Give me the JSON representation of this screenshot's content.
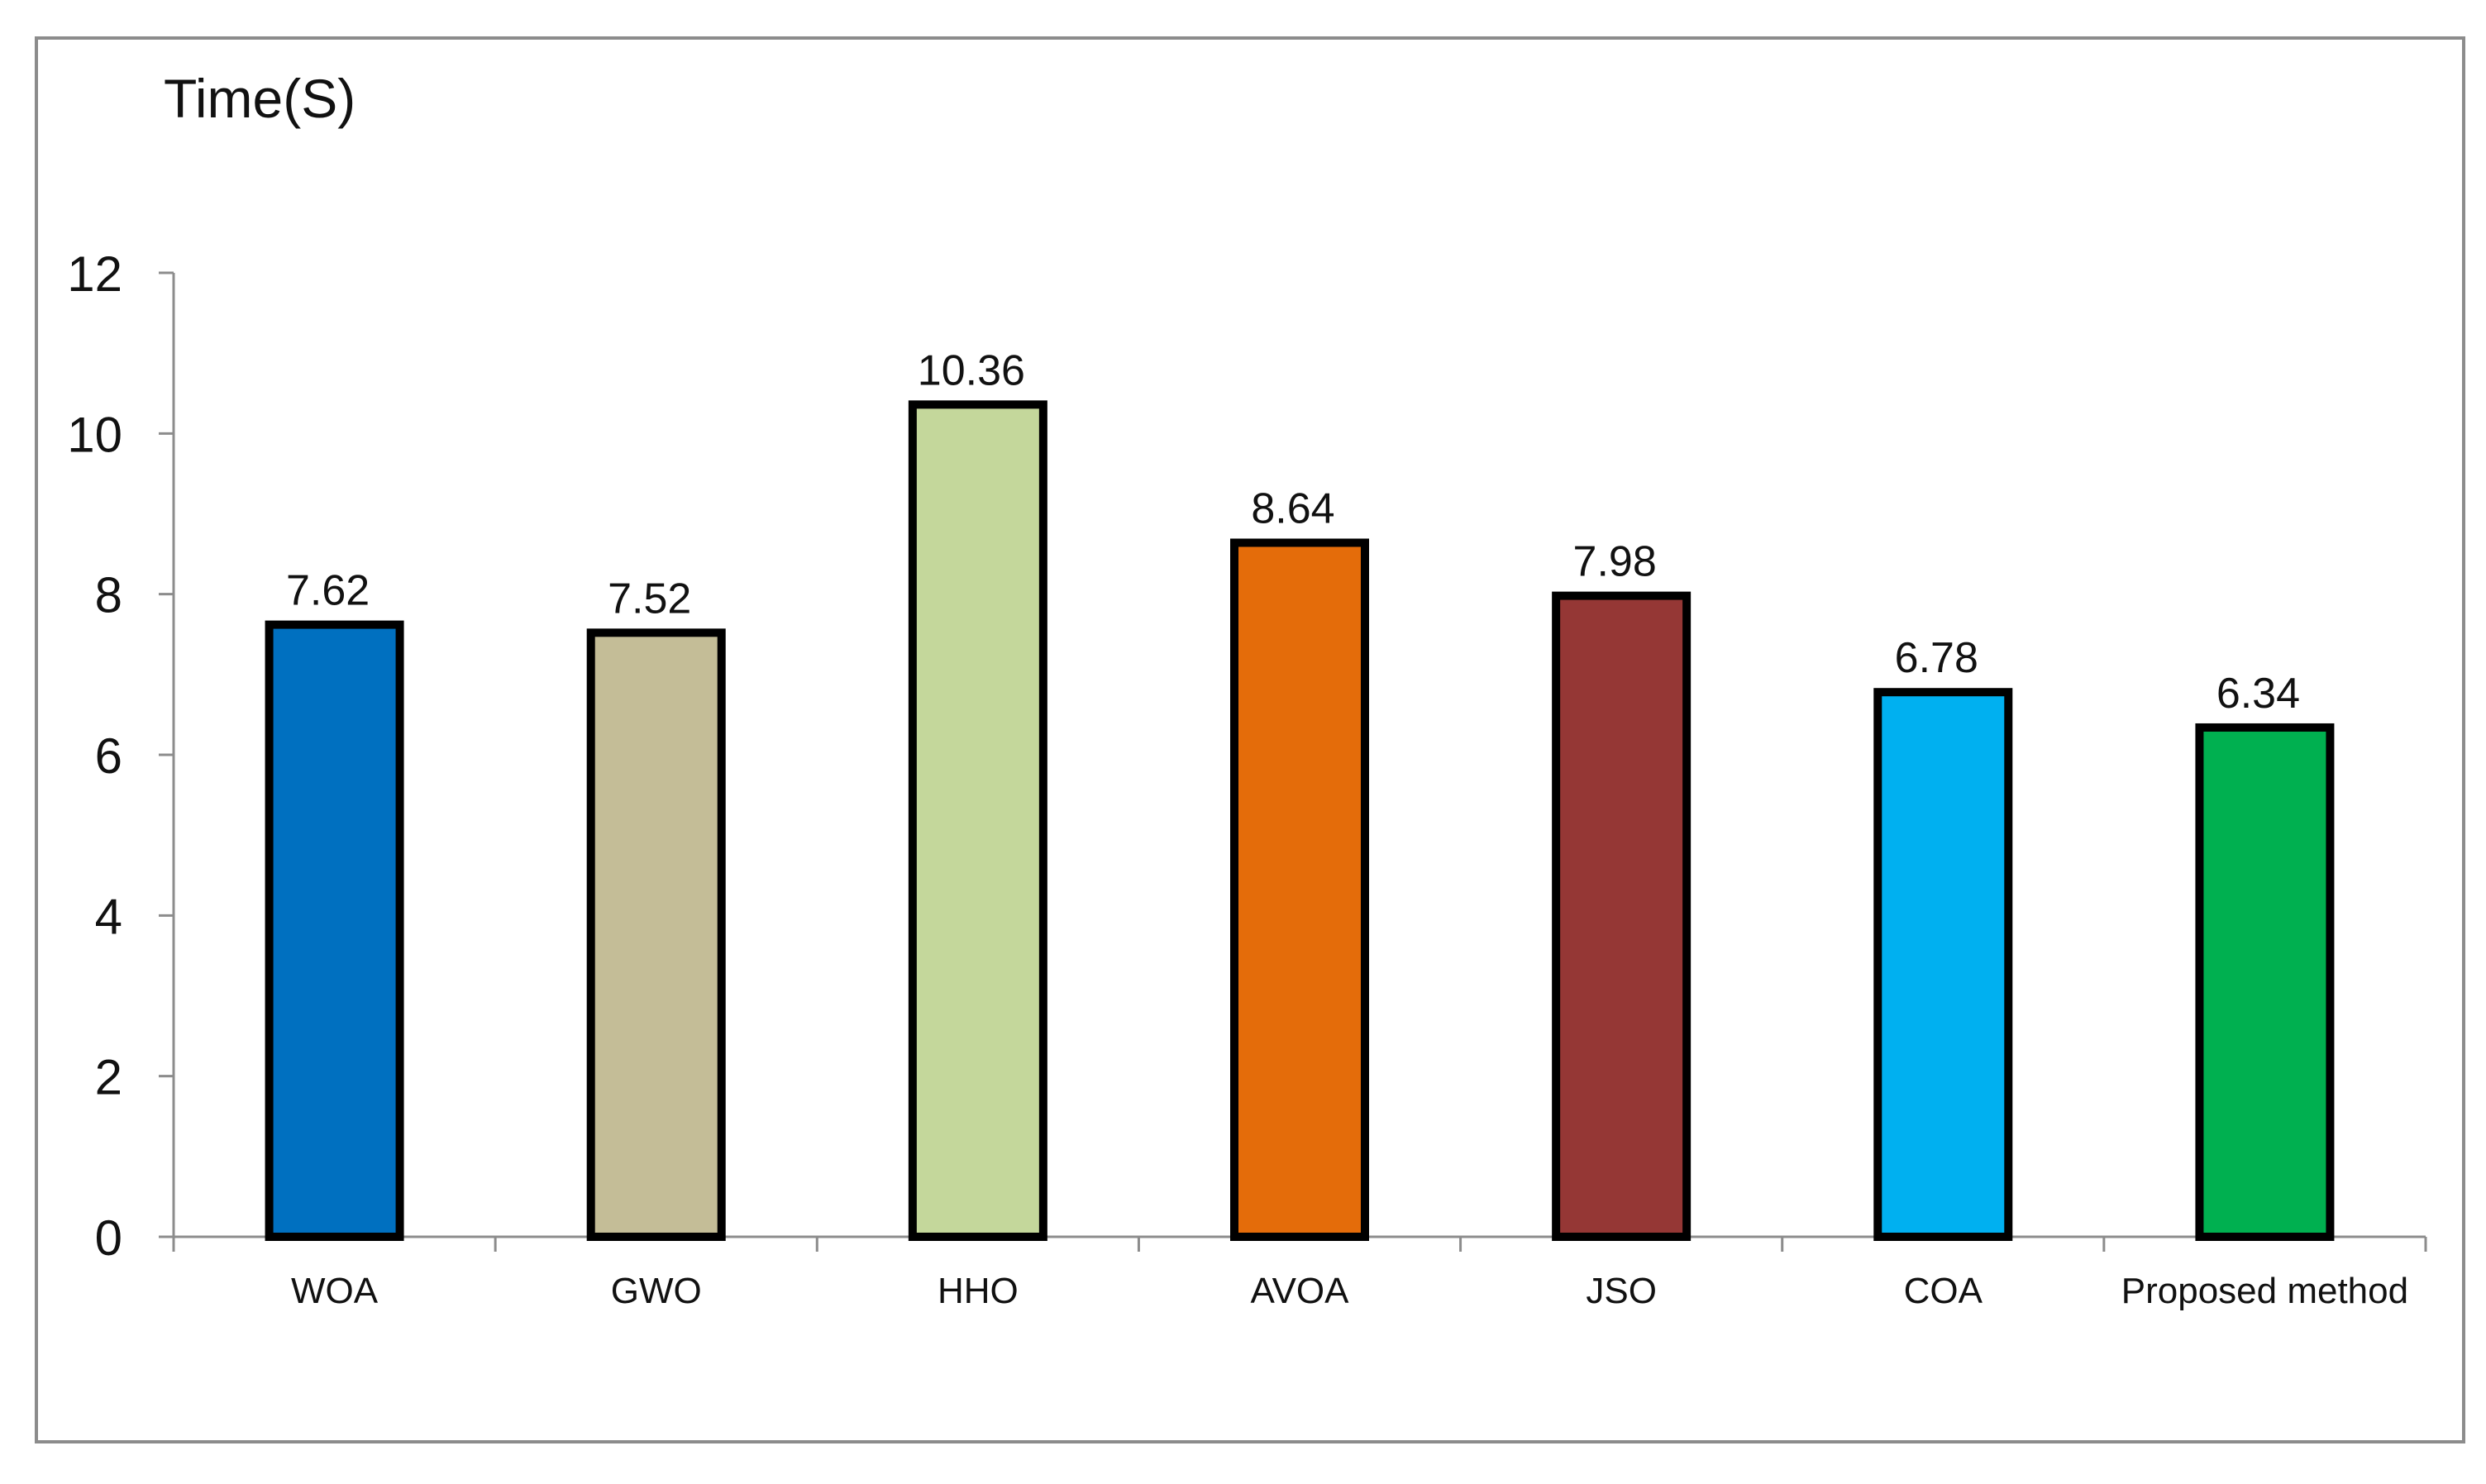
{
  "chart_data": {
    "type": "bar",
    "ylabel": "Time(S)",
    "categories": [
      "WOA",
      "GWO",
      "HHO",
      "AVOA",
      "JSO",
      "COA",
      "Proposed method"
    ],
    "values": [
      7.62,
      7.52,
      10.36,
      8.64,
      7.98,
      6.78,
      6.34
    ],
    "value_labels": [
      "7.62",
      "7.52",
      "10.36",
      "8.64",
      "7.98",
      "6.78",
      "6.34"
    ],
    "colors": [
      "#0070C0",
      "#C4BD97",
      "#C4D79B",
      "#E46C0A",
      "#953735",
      "#00B0F0",
      "#00B050"
    ],
    "ylim": [
      0,
      12
    ],
    "yticks": [
      0,
      2,
      4,
      6,
      8,
      10,
      12
    ],
    "grid": false,
    "legend": "none"
  }
}
